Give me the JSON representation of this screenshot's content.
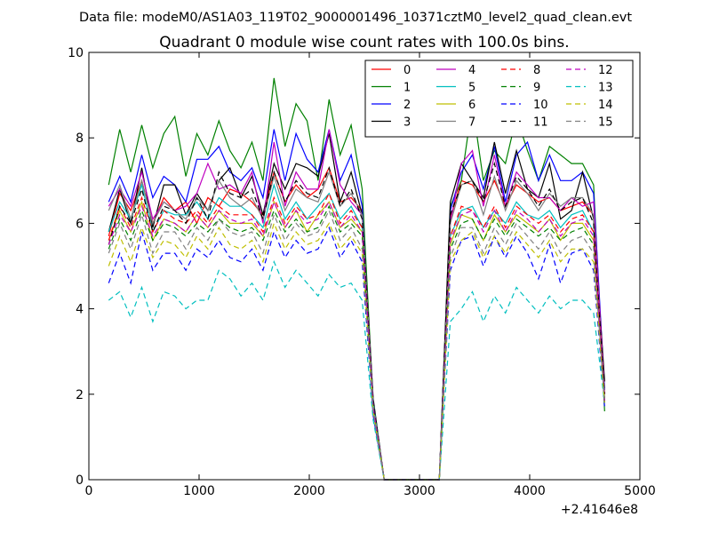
{
  "header": "Data file: modeM0/AS1A03_119T02_9000001496_10371cztM0_level2_quad_clean.evt",
  "chart_data": {
    "type": "line",
    "title": "Quadrant 0 module wise count rates with 100.0s bins.",
    "xlabel": "",
    "ylabel": "",
    "x_offset_label": "+2.41646e8",
    "xlim": [
      0,
      5000
    ],
    "ylim": [
      0,
      10
    ],
    "xticks": [
      0,
      1000,
      2000,
      3000,
      4000,
      5000
    ],
    "yticks": [
      0,
      2,
      4,
      6,
      8,
      10
    ],
    "grid": false,
    "legend_position": "top-right",
    "legend_columns": 4,
    "x": [
      180,
      280,
      380,
      480,
      580,
      680,
      780,
      880,
      980,
      1080,
      1180,
      1280,
      1380,
      1480,
      1580,
      1680,
      1780,
      1880,
      1980,
      2080,
      2180,
      2280,
      2380,
      2480,
      2580,
      2680,
      2780,
      2880,
      2980,
      3080,
      3180,
      3280,
      3380,
      3480,
      3580,
      3680,
      3780,
      3880,
      3980,
      4080,
      4180,
      4280,
      4380,
      4480,
      4580,
      4680
    ],
    "series": [
      {
        "name": "0",
        "color": "#ff0000",
        "dash": false,
        "values": [
          5.7,
          6.7,
          6.3,
          7.0,
          6.0,
          6.6,
          6.3,
          6.5,
          6.0,
          6.6,
          6.4,
          6.8,
          6.7,
          6.5,
          6.2,
          7.2,
          6.5,
          6.9,
          6.6,
          6.8,
          7.3,
          6.5,
          6.6,
          6.3,
          1.7,
          0,
          0,
          0,
          0,
          0,
          0,
          6.1,
          7.0,
          6.9,
          6.5,
          7.0,
          6.4,
          6.9,
          6.7,
          6.5,
          6.6,
          6.3,
          6.4,
          6.5,
          6.2,
          2.0
        ]
      },
      {
        "name": "1",
        "color": "#008000",
        "dash": false,
        "values": [
          6.9,
          8.2,
          7.2,
          8.3,
          7.3,
          8.1,
          8.5,
          7.1,
          8.1,
          7.6,
          8.4,
          7.7,
          7.3,
          7.9,
          7.0,
          9.4,
          7.8,
          8.8,
          8.4,
          7.0,
          8.9,
          7.6,
          8.3,
          6.8,
          1.8,
          0,
          0,
          0,
          0,
          0,
          0,
          6.4,
          7.0,
          8.8,
          7.0,
          7.7,
          7.4,
          8.5,
          7.7,
          7.0,
          7.8,
          7.6,
          7.4,
          7.4,
          6.9,
          1.6
        ]
      },
      {
        "name": "2",
        "color": "#0000ff",
        "dash": false,
        "values": [
          6.5,
          7.1,
          6.5,
          7.6,
          6.6,
          7.1,
          6.9,
          6.5,
          7.5,
          7.5,
          7.8,
          7.2,
          7.0,
          7.3,
          6.6,
          8.2,
          7.0,
          8.1,
          7.5,
          7.2,
          8.2,
          7.0,
          7.6,
          6.4,
          1.6,
          0,
          0,
          0,
          0,
          0,
          0,
          6.3,
          7.2,
          7.6,
          6.8,
          7.8,
          6.5,
          7.6,
          7.9,
          7.0,
          7.6,
          7.0,
          7.0,
          7.2,
          6.7,
          2.1
        ]
      },
      {
        "name": "3",
        "color": "#000000",
        "dash": false,
        "values": [
          5.8,
          6.8,
          6.0,
          7.3,
          5.9,
          6.9,
          6.9,
          6.2,
          6.7,
          6.3,
          7.0,
          7.3,
          6.6,
          7.1,
          6.2,
          7.4,
          6.8,
          7.4,
          7.3,
          7.1,
          8.1,
          6.5,
          7.2,
          6.2,
          1.9,
          0,
          0,
          0,
          0,
          0,
          0,
          6.5,
          7.4,
          7.0,
          6.6,
          7.9,
          6.7,
          7.7,
          6.8,
          6.6,
          7.4,
          6.1,
          6.3,
          7.2,
          6.1,
          2.3
        ]
      },
      {
        "name": "4",
        "color": "#bf00bf",
        "dash": false,
        "values": [
          6.4,
          6.8,
          6.4,
          7.2,
          6.1,
          6.5,
          6.3,
          6.4,
          6.7,
          7.4,
          6.8,
          6.9,
          6.7,
          7.2,
          6.0,
          7.9,
          6.4,
          7.2,
          6.8,
          6.8,
          8.2,
          6.9,
          6.5,
          6.2,
          1.8,
          0,
          0,
          0,
          0,
          0,
          0,
          6.0,
          7.4,
          7.7,
          6.4,
          7.6,
          6.4,
          7.2,
          6.9,
          6.6,
          6.6,
          6.3,
          6.6,
          6.4,
          6.5,
          2.0
        ]
      },
      {
        "name": "5",
        "color": "#00bfbf",
        "dash": false,
        "values": [
          5.8,
          6.5,
          6.1,
          6.9,
          5.8,
          6.3,
          6.2,
          6.2,
          6.5,
          6.1,
          6.6,
          6.4,
          6.4,
          6.2,
          5.9,
          6.9,
          6.1,
          6.5,
          6.1,
          6.4,
          6.7,
          6.1,
          6.4,
          5.9,
          1.8,
          0,
          0,
          0,
          0,
          0,
          0,
          5.7,
          6.3,
          6.4,
          5.9,
          6.3,
          6.0,
          6.5,
          6.2,
          6.1,
          6.3,
          5.9,
          6.2,
          6.3,
          5.8,
          1.9
        ]
      },
      {
        "name": "6",
        "color": "#bfbf00",
        "dash": false,
        "values": [
          5.6,
          6.3,
          5.8,
          6.5,
          5.6,
          6.1,
          6.0,
          5.8,
          6.2,
          5.9,
          6.3,
          6.0,
          6.0,
          6.0,
          5.7,
          6.5,
          5.9,
          6.3,
          5.8,
          6.2,
          6.5,
          5.9,
          6.1,
          5.8,
          1.7,
          0,
          0,
          0,
          0,
          0,
          0,
          5.5,
          6.2,
          6.1,
          5.6,
          6.2,
          5.8,
          6.2,
          6.0,
          5.8,
          6.1,
          5.6,
          6.0,
          6.0,
          5.6,
          1.8
        ]
      },
      {
        "name": "7",
        "color": "#808080",
        "dash": false,
        "values": [
          6.3,
          6.9,
          6.1,
          7.0,
          6.0,
          6.5,
          6.3,
          6.1,
          6.6,
          6.3,
          7.0,
          6.6,
          6.4,
          6.6,
          6.1,
          7.1,
          6.3,
          6.8,
          6.6,
          6.5,
          7.2,
          6.4,
          6.7,
          6.2,
          1.7,
          0,
          0,
          0,
          0,
          0,
          0,
          6.0,
          6.9,
          7.0,
          6.2,
          7.1,
          6.3,
          7.0,
          6.7,
          6.3,
          6.7,
          6.4,
          6.6,
          6.6,
          6.2,
          1.8
        ]
      },
      {
        "name": "8",
        "color": "#ff0000",
        "dash": true,
        "values": [
          5.6,
          6.4,
          5.9,
          6.6,
          5.8,
          6.3,
          6.1,
          6.0,
          6.3,
          6.0,
          6.4,
          6.2,
          6.2,
          6.2,
          5.8,
          6.6,
          6.0,
          6.4,
          6.1,
          6.2,
          6.7,
          6.0,
          6.3,
          5.9,
          1.7,
          0,
          0,
          0,
          0,
          0,
          0,
          5.7,
          6.4,
          6.3,
          5.9,
          6.4,
          5.9,
          6.4,
          6.2,
          6.0,
          6.2,
          5.8,
          6.1,
          6.2,
          5.8,
          1.9
        ]
      },
      {
        "name": "9",
        "color": "#008000",
        "dash": true,
        "values": [
          5.4,
          6.1,
          5.6,
          6.3,
          5.6,
          6.0,
          5.9,
          5.7,
          6.0,
          5.8,
          6.1,
          5.9,
          5.8,
          5.9,
          5.6,
          6.3,
          5.8,
          6.1,
          5.8,
          5.9,
          6.4,
          5.8,
          6.0,
          5.7,
          1.6,
          0,
          0,
          0,
          0,
          0,
          0,
          5.4,
          6.0,
          6.1,
          5.6,
          6.1,
          5.7,
          6.1,
          5.9,
          5.7,
          5.9,
          5.6,
          5.8,
          5.9,
          5.5,
          1.8
        ]
      },
      {
        "name": "10",
        "color": "#0000ff",
        "dash": true,
        "values": [
          4.6,
          5.3,
          4.6,
          5.8,
          4.9,
          5.3,
          5.3,
          4.9,
          5.4,
          5.2,
          5.6,
          5.2,
          5.1,
          5.4,
          4.9,
          5.8,
          5.2,
          5.6,
          5.3,
          5.4,
          5.9,
          5.2,
          5.6,
          5.1,
          1.5,
          0,
          0,
          0,
          0,
          0,
          0,
          4.9,
          5.6,
          5.7,
          5.0,
          5.7,
          5.2,
          5.7,
          5.3,
          4.7,
          5.5,
          4.6,
          5.3,
          5.4,
          4.9,
          1.7
        ]
      },
      {
        "name": "11",
        "color": "#000000",
        "dash": true,
        "values": [
          5.5,
          6.4,
          6.0,
          6.8,
          5.8,
          6.4,
          6.3,
          6.0,
          6.6,
          6.1,
          7.2,
          6.7,
          6.6,
          6.8,
          6.1,
          7.2,
          6.5,
          7.0,
          6.7,
          6.6,
          7.3,
          6.4,
          6.8,
          6.1,
          1.8,
          0,
          0,
          0,
          0,
          0,
          0,
          6.2,
          6.9,
          7.0,
          6.5,
          7.4,
          6.4,
          7.1,
          6.8,
          6.4,
          6.8,
          6.3,
          6.5,
          6.6,
          6.0,
          2.0
        ]
      },
      {
        "name": "12",
        "color": "#bf00bf",
        "dash": true,
        "values": [
          5.5,
          6.2,
          5.8,
          6.4,
          5.7,
          6.1,
          6.0,
          5.8,
          6.2,
          5.9,
          6.3,
          6.1,
          6.0,
          6.1,
          5.7,
          6.5,
          5.9,
          6.3,
          6.0,
          6.1,
          6.5,
          5.9,
          6.2,
          5.8,
          1.7,
          0,
          0,
          0,
          0,
          0,
          0,
          5.6,
          6.2,
          6.3,
          5.8,
          6.3,
          5.8,
          6.3,
          6.1,
          5.8,
          6.1,
          5.7,
          6.0,
          6.1,
          5.7,
          1.8
        ]
      },
      {
        "name": "13",
        "color": "#00bfbf",
        "dash": true,
        "values": [
          4.2,
          4.4,
          3.8,
          4.5,
          3.7,
          4.4,
          4.3,
          4.0,
          4.2,
          4.2,
          4.9,
          4.7,
          4.3,
          4.6,
          4.2,
          5.1,
          4.5,
          4.9,
          4.6,
          4.3,
          4.8,
          4.5,
          4.6,
          4.2,
          1.4,
          0,
          0,
          0,
          0,
          0,
          0,
          3.7,
          4.0,
          4.4,
          3.7,
          4.3,
          3.9,
          4.5,
          4.2,
          3.9,
          4.3,
          4.0,
          4.2,
          4.2,
          3.9,
          1.8
        ]
      },
      {
        "name": "14",
        "color": "#bfbf00",
        "dash": true,
        "values": [
          5.0,
          5.7,
          5.1,
          5.9,
          5.2,
          5.6,
          5.5,
          5.2,
          5.7,
          5.4,
          5.9,
          5.5,
          5.4,
          5.6,
          5.1,
          6.0,
          5.4,
          5.8,
          5.5,
          5.6,
          6.0,
          5.4,
          5.7,
          5.3,
          1.6,
          0,
          0,
          0,
          0,
          0,
          0,
          5.1,
          5.6,
          5.8,
          5.2,
          5.7,
          5.3,
          5.8,
          5.5,
          5.2,
          5.6,
          5.1,
          5.4,
          5.4,
          5.1,
          1.8
        ]
      },
      {
        "name": "15",
        "color": "#808080",
        "dash": true,
        "values": [
          5.3,
          6.0,
          5.4,
          6.2,
          5.3,
          5.8,
          5.8,
          5.4,
          5.9,
          5.6,
          6.1,
          5.8,
          5.7,
          5.8,
          5.3,
          6.2,
          5.6,
          6.0,
          5.7,
          5.8,
          6.3,
          5.6,
          5.9,
          5.4,
          1.6,
          0,
          0,
          0,
          0,
          0,
          0,
          5.2,
          5.9,
          5.9,
          5.3,
          5.9,
          5.5,
          6.0,
          5.7,
          5.4,
          5.8,
          5.3,
          5.6,
          5.7,
          5.3,
          1.9
        ]
      }
    ]
  }
}
